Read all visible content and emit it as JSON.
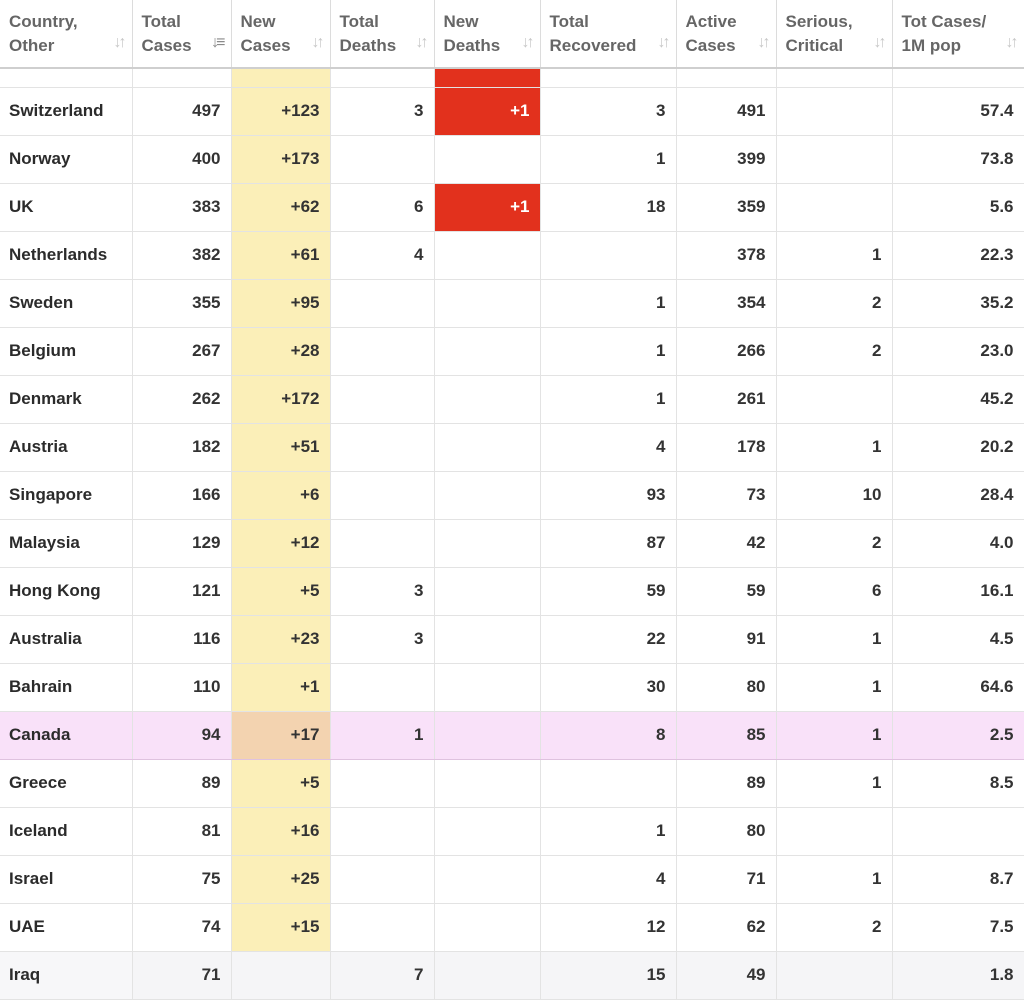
{
  "headers": [
    {
      "label": "Country, Other",
      "sort": "sort-neutral-icon"
    },
    {
      "label": "Total Cases",
      "sort": "sort-desc-icon"
    },
    {
      "label": "New Cases",
      "sort": "sort-neutral-icon"
    },
    {
      "label": "Total Deaths",
      "sort": "sort-neutral-icon"
    },
    {
      "label": "New Deaths",
      "sort": "sort-neutral-icon"
    },
    {
      "label": "Total Recovered",
      "sort": "sort-neutral-icon"
    },
    {
      "label": "Active Cases",
      "sort": "sort-neutral-icon"
    },
    {
      "label": "Serious, Critical",
      "sort": "sort-neutral-icon"
    },
    {
      "label": "Tot Cases/ 1M pop",
      "sort": "sort-neutral-icon"
    }
  ],
  "colors": {
    "new_cases_bg": "#fbefb8",
    "new_deaths_bg": "#e2311d",
    "highlight_row_bg": "#f9e1f9",
    "highlight_new_cases_bg": "#f3d3b0"
  },
  "rows": [
    {
      "country": "",
      "total_cases": "",
      "new_cases": "",
      "total_deaths": "",
      "new_deaths": "",
      "total_recovered": "",
      "active_cases": "",
      "serious_critical": "",
      "per_million": "",
      "new_deaths_highlight": true
    },
    {
      "country": "Switzerland",
      "total_cases": "497",
      "new_cases": "+123",
      "total_deaths": "3",
      "new_deaths": "+1",
      "total_recovered": "3",
      "active_cases": "491",
      "serious_critical": "",
      "per_million": "57.4",
      "new_deaths_highlight": true
    },
    {
      "country": "Norway",
      "total_cases": "400",
      "new_cases": "+173",
      "total_deaths": "",
      "new_deaths": "",
      "total_recovered": "1",
      "active_cases": "399",
      "serious_critical": "",
      "per_million": "73.8"
    },
    {
      "country": "UK",
      "total_cases": "383",
      "new_cases": "+62",
      "total_deaths": "6",
      "new_deaths": "+1",
      "total_recovered": "18",
      "active_cases": "359",
      "serious_critical": "",
      "per_million": "5.6",
      "new_deaths_highlight": true
    },
    {
      "country": "Netherlands",
      "total_cases": "382",
      "new_cases": "+61",
      "total_deaths": "4",
      "new_deaths": "",
      "total_recovered": "",
      "active_cases": "378",
      "serious_critical": "1",
      "per_million": "22.3"
    },
    {
      "country": "Sweden",
      "total_cases": "355",
      "new_cases": "+95",
      "total_deaths": "",
      "new_deaths": "",
      "total_recovered": "1",
      "active_cases": "354",
      "serious_critical": "2",
      "per_million": "35.2"
    },
    {
      "country": "Belgium",
      "total_cases": "267",
      "new_cases": "+28",
      "total_deaths": "",
      "new_deaths": "",
      "total_recovered": "1",
      "active_cases": "266",
      "serious_critical": "2",
      "per_million": "23.0"
    },
    {
      "country": "Denmark",
      "total_cases": "262",
      "new_cases": "+172",
      "total_deaths": "",
      "new_deaths": "",
      "total_recovered": "1",
      "active_cases": "261",
      "serious_critical": "",
      "per_million": "45.2"
    },
    {
      "country": "Austria",
      "total_cases": "182",
      "new_cases": "+51",
      "total_deaths": "",
      "new_deaths": "",
      "total_recovered": "4",
      "active_cases": "178",
      "serious_critical": "1",
      "per_million": "20.2"
    },
    {
      "country": "Singapore",
      "total_cases": "166",
      "new_cases": "+6",
      "total_deaths": "",
      "new_deaths": "",
      "total_recovered": "93",
      "active_cases": "73",
      "serious_critical": "10",
      "per_million": "28.4"
    },
    {
      "country": "Malaysia",
      "total_cases": "129",
      "new_cases": "+12",
      "total_deaths": "",
      "new_deaths": "",
      "total_recovered": "87",
      "active_cases": "42",
      "serious_critical": "2",
      "per_million": "4.0"
    },
    {
      "country": "Hong Kong",
      "total_cases": "121",
      "new_cases": "+5",
      "total_deaths": "3",
      "new_deaths": "",
      "total_recovered": "59",
      "active_cases": "59",
      "serious_critical": "6",
      "per_million": "16.1"
    },
    {
      "country": "Australia",
      "total_cases": "116",
      "new_cases": "+23",
      "total_deaths": "3",
      "new_deaths": "",
      "total_recovered": "22",
      "active_cases": "91",
      "serious_critical": "1",
      "per_million": "4.5"
    },
    {
      "country": "Bahrain",
      "total_cases": "110",
      "new_cases": "+1",
      "total_deaths": "",
      "new_deaths": "",
      "total_recovered": "30",
      "active_cases": "80",
      "serious_critical": "1",
      "per_million": "64.6"
    },
    {
      "country": "Canada",
      "total_cases": "94",
      "new_cases": "+17",
      "total_deaths": "1",
      "new_deaths": "",
      "total_recovered": "8",
      "active_cases": "85",
      "serious_critical": "1",
      "per_million": "2.5",
      "highlight": true
    },
    {
      "country": "Greece",
      "total_cases": "89",
      "new_cases": "+5",
      "total_deaths": "",
      "new_deaths": "",
      "total_recovered": "",
      "active_cases": "89",
      "serious_critical": "1",
      "per_million": "8.5"
    },
    {
      "country": "Iceland",
      "total_cases": "81",
      "new_cases": "+16",
      "total_deaths": "",
      "new_deaths": "",
      "total_recovered": "1",
      "active_cases": "80",
      "serious_critical": "",
      "per_million": ""
    },
    {
      "country": "Israel",
      "total_cases": "75",
      "new_cases": "+25",
      "total_deaths": "",
      "new_deaths": "",
      "total_recovered": "4",
      "active_cases": "71",
      "serious_critical": "1",
      "per_million": "8.7"
    },
    {
      "country": "UAE",
      "total_cases": "74",
      "new_cases": "+15",
      "total_deaths": "",
      "new_deaths": "",
      "total_recovered": "12",
      "active_cases": "62",
      "serious_critical": "2",
      "per_million": "7.5"
    },
    {
      "country": "Iraq",
      "total_cases": "71",
      "new_cases": "",
      "total_deaths": "7",
      "new_deaths": "",
      "total_recovered": "15",
      "active_cases": "49",
      "serious_critical": "",
      "per_million": "1.8"
    }
  ]
}
